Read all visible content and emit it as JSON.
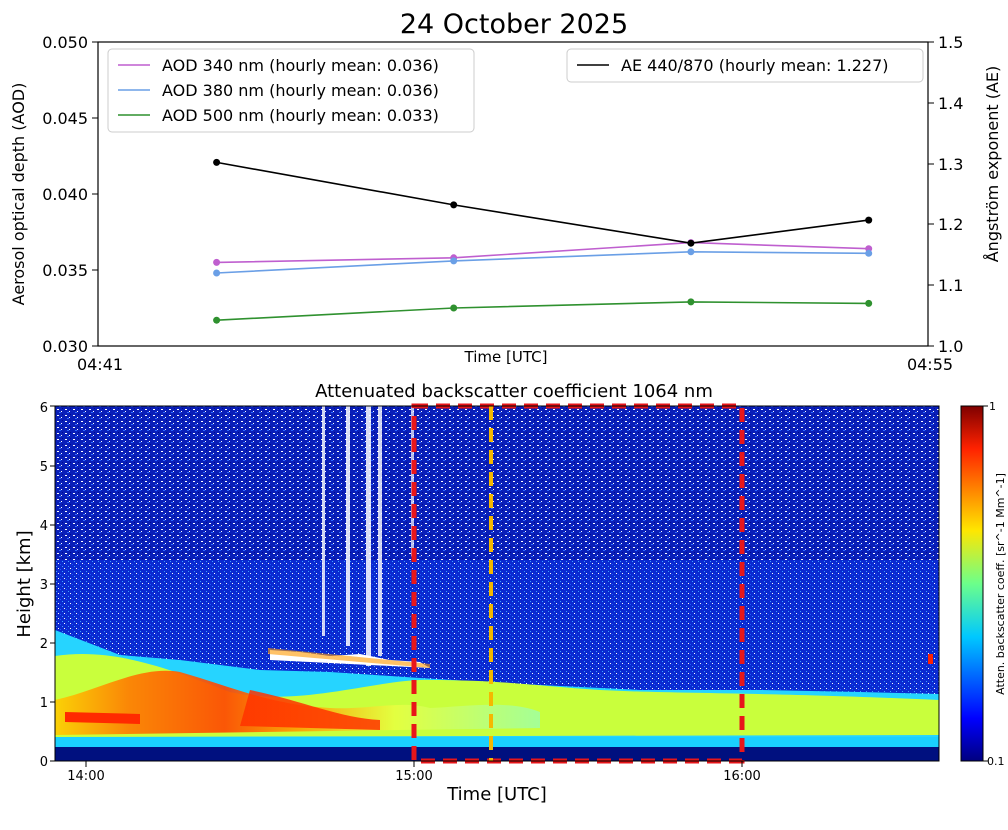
{
  "figure_title": "24 October 2025",
  "chart_data": [
    {
      "type": "line",
      "title": "24 October 2025",
      "xlabel": "Time [UTC]",
      "ylabel": "Aerosol optical depth (AOD)",
      "ylabel_right": "Ångström exponent (AE)",
      "x": [
        "04:43",
        "04:47",
        "04:51",
        "04:54"
      ],
      "x_tick_labels": [
        "04:41",
        "04:55"
      ],
      "ylim": [
        0.03,
        0.05
      ],
      "yticks": [
        "0.030",
        "0.035",
        "0.040",
        "0.045",
        "0.050"
      ],
      "ylim_right": [
        1.0,
        1.5
      ],
      "yticks_right": [
        "1.0",
        "1.1",
        "1.2",
        "1.3",
        "1.4",
        "1.5"
      ],
      "grid": false,
      "legend_left_position": "upper-left",
      "legend_right_position": "upper-right",
      "series": [
        {
          "name": "AOD 340 nm (hourly mean: 0.036)",
          "axis": "left",
          "color": "#bf5fcf",
          "values": [
            0.0355,
            0.0358,
            0.0368,
            0.0364
          ]
        },
        {
          "name": "AOD 380 nm (hourly mean: 0.036)",
          "axis": "left",
          "color": "#6a9fe6",
          "values": [
            0.0348,
            0.0356,
            0.0362,
            0.0361
          ]
        },
        {
          "name": "AOD 500 nm (hourly mean: 0.033)",
          "axis": "left",
          "color": "#2f912f",
          "values": [
            0.0317,
            0.0325,
            0.0329,
            0.0328
          ]
        },
        {
          "name": "AE 440/870 (hourly mean: 1.227)",
          "axis": "right",
          "color": "#000000",
          "values": [
            1.302,
            1.232,
            1.169,
            1.207
          ]
        }
      ]
    },
    {
      "type": "heatmap",
      "title": "Attenuated backscatter coefficient 1064 nm",
      "xlabel": "Time [UTC]",
      "ylabel": "Height [km]",
      "x_tick_labels": [
        "14:00",
        "15:00",
        "16:00"
      ],
      "xlim": [
        "13:55",
        "16:35"
      ],
      "ylim": [
        0,
        6
      ],
      "yticks": [
        "0",
        "1",
        "2",
        "3",
        "4",
        "5",
        "6"
      ],
      "colorbar_label": "Atten. backscatter coeff. [sr^-1 Mm^-1]",
      "colorbar_ticks": [
        "0.1",
        "1"
      ],
      "colorbar_scale": "log",
      "colormap": "jet",
      "highlight_box": {
        "color": "#e8161a",
        "style": "dashed",
        "x_start": "15:00",
        "x_end": "16:00"
      },
      "highlight_line": {
        "color": "#f5b800",
        "style": "dashed",
        "x": "15:14"
      }
    }
  ]
}
